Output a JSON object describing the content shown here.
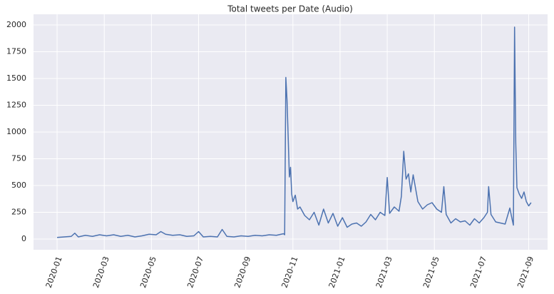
{
  "chart_data": {
    "type": "line",
    "title": "Total tweets per Date (Audio)",
    "x": [
      0,
      0.3,
      0.6,
      0.75,
      0.9,
      1.2,
      1.5,
      1.8,
      2.1,
      2.4,
      2.7,
      3.0,
      3.3,
      3.6,
      3.9,
      4.2,
      4.4,
      4.6,
      4.9,
      5.2,
      5.5,
      5.8,
      6.0,
      6.2,
      6.5,
      6.8,
      7.0,
      7.2,
      7.5,
      7.8,
      8.1,
      8.4,
      8.7,
      9.0,
      9.3,
      9.6,
      9.65,
      9.7,
      9.75,
      9.8,
      9.85,
      9.9,
      9.95,
      10.0,
      10.1,
      10.2,
      10.3,
      10.5,
      10.7,
      10.9,
      11.1,
      11.3,
      11.5,
      11.7,
      11.9,
      12.1,
      12.3,
      12.5,
      12.7,
      12.9,
      13.1,
      13.3,
      13.5,
      13.7,
      13.9,
      14.0,
      14.1,
      14.3,
      14.5,
      14.6,
      14.7,
      14.8,
      14.9,
      15.0,
      15.1,
      15.3,
      15.5,
      15.7,
      15.9,
      16.1,
      16.3,
      16.4,
      16.5,
      16.7,
      16.9,
      17.1,
      17.3,
      17.5,
      17.7,
      17.9,
      18.1,
      18.25,
      18.3,
      18.4,
      18.6,
      18.8,
      19.0,
      19.2,
      19.3,
      19.35,
      19.4,
      19.45,
      19.5,
      19.6,
      19.7,
      19.8,
      19.9,
      20.0,
      20.1
    ],
    "series": [
      {
        "name": "Audio",
        "color": "#4c72b0",
        "values": [
          15,
          20,
          25,
          55,
          20,
          35,
          25,
          40,
          30,
          40,
          25,
          35,
          20,
          30,
          45,
          40,
          70,
          45,
          35,
          40,
          25,
          30,
          70,
          20,
          25,
          20,
          90,
          25,
          20,
          30,
          25,
          35,
          30,
          40,
          35,
          50,
          40,
          1510,
          1300,
          950,
          580,
          670,
          420,
          350,
          410,
          280,
          300,
          220,
          180,
          250,
          130,
          280,
          150,
          240,
          120,
          200,
          110,
          140,
          150,
          120,
          160,
          230,
          180,
          250,
          220,
          575,
          240,
          300,
          260,
          400,
          820,
          560,
          610,
          440,
          600,
          350,
          280,
          320,
          340,
          280,
          250,
          490,
          230,
          150,
          190,
          160,
          170,
          130,
          190,
          150,
          200,
          250,
          490,
          230,
          160,
          150,
          140,
          290,
          180,
          130,
          1980,
          900,
          480,
          420,
          380,
          440,
          350,
          310,
          340
        ]
      }
    ],
    "xlim": [
      -1.0,
      20.8
    ],
    "xticks": [
      {
        "value": 0,
        "label": "2020-01"
      },
      {
        "value": 2,
        "label": "2020-03"
      },
      {
        "value": 4,
        "label": "2020-05"
      },
      {
        "value": 6,
        "label": "2020-07"
      },
      {
        "value": 8,
        "label": "2020-09"
      },
      {
        "value": 10,
        "label": "2020-11"
      },
      {
        "value": 12,
        "label": "2021-01"
      },
      {
        "value": 14,
        "label": "2021-03"
      },
      {
        "value": 16,
        "label": "2021-05"
      },
      {
        "value": 18,
        "label": "2021-07"
      },
      {
        "value": 20,
        "label": "2021-09"
      }
    ],
    "ylim": [
      -100,
      2100
    ],
    "yticks": [
      0,
      250,
      500,
      750,
      1000,
      1250,
      1500,
      1750,
      2000
    ],
    "grid": true
  }
}
